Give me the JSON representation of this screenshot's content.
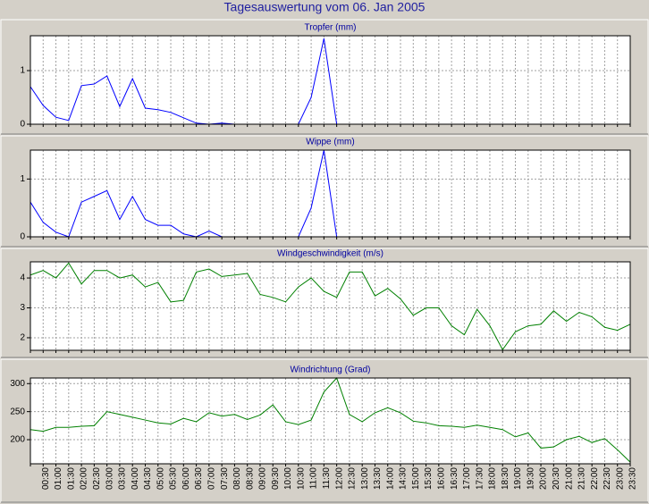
{
  "title": "Tagesauswertung vom 06. Jan 2005",
  "chart_data": [
    {
      "type": "line",
      "title": "Tropfer (mm)",
      "grid": true,
      "ylim": [
        0,
        1.65
      ],
      "yticks": [
        0,
        1
      ],
      "series": [
        {
          "name": "Tropfer (mm)",
          "color": "#0000ff",
          "values": [
            0.7,
            0.35,
            0.13,
            0.07,
            0.72,
            0.75,
            0.9,
            0.33,
            0.85,
            0.3,
            0.27,
            0.22,
            0.12,
            0.02,
            0,
            0.02,
            0,
            0,
            0,
            0,
            0,
            0,
            0.5,
            1.6,
            0,
            0,
            0,
            0,
            0,
            0,
            0,
            0,
            0,
            0,
            0,
            0,
            0,
            0,
            0,
            0,
            0,
            0,
            0,
            0,
            0,
            0,
            0,
            0
          ]
        }
      ]
    },
    {
      "type": "line",
      "title": "Wippe (mm)",
      "grid": true,
      "ylim": [
        0,
        1.5
      ],
      "yticks": [
        0,
        1
      ],
      "series": [
        {
          "name": "Wippe (mm)",
          "color": "#0000ff",
          "values": [
            0.6,
            0.25,
            0.08,
            0,
            0.6,
            0.7,
            0.8,
            0.3,
            0.7,
            0.3,
            0.2,
            0.2,
            0.05,
            0,
            0.1,
            0,
            0,
            0,
            0,
            0,
            0,
            0,
            0.5,
            1.5,
            0,
            0,
            0,
            0,
            0,
            0,
            0,
            0,
            0,
            0,
            0,
            0,
            0,
            0,
            0,
            0,
            0,
            0,
            0,
            0,
            0,
            0,
            0,
            0
          ]
        }
      ]
    },
    {
      "type": "line",
      "title": "Windgeschwindigkeit (m/s)",
      "grid": true,
      "ylim": [
        1.58,
        4.54
      ],
      "yticks": [
        2,
        3,
        4
      ],
      "series": [
        {
          "name": "Windgeschwindigkeit (m/s)",
          "color": "#008000",
          "values": [
            4.1,
            4.25,
            4.0,
            4.5,
            3.8,
            4.25,
            4.25,
            4.0,
            4.1,
            3.7,
            3.85,
            3.2,
            3.25,
            4.2,
            4.3,
            4.05,
            4.1,
            4.15,
            3.45,
            3.35,
            3.2,
            3.7,
            4.0,
            3.55,
            3.35,
            4.2,
            4.2,
            3.4,
            3.65,
            3.3,
            2.75,
            3.0,
            3.0,
            2.4,
            2.1,
            2.95,
            2.4,
            1.6,
            2.2,
            2.4,
            2.45,
            2.9,
            2.55,
            2.85,
            2.7,
            2.35,
            2.25,
            2.45
          ]
        }
      ]
    },
    {
      "type": "line",
      "title": "Windrichtung (Grad)",
      "grid": true,
      "ylim": [
        157,
        310
      ],
      "yticks": [
        200,
        250,
        300
      ],
      "categories": [
        null,
        "00:30",
        "01:00",
        "01:30",
        "02:00",
        "02:30",
        "03:00",
        "03:30",
        "04:00",
        "04:30",
        "05:00",
        "05:30",
        "06:00",
        "06:30",
        "07:00",
        "07:30",
        "08:00",
        "08:30",
        "09:00",
        "09:30",
        "10:00",
        "10:30",
        "11:00",
        "11:30",
        "12:00",
        "12:30",
        "13:00",
        "13:30",
        "14:00",
        "14:30",
        "15:00",
        "15:30",
        "16:00",
        "16:30",
        "17:00",
        "17:30",
        "18:00",
        "18:30",
        "19:00",
        "19:30",
        "20:00",
        "20:30",
        "21:00",
        "21:30",
        "22:00",
        "22:30",
        "23:00",
        "23:30"
      ],
      "series": [
        {
          "name": "Windrichtung (Grad)",
          "color": "#008000",
          "values": [
            218,
            215,
            222,
            222,
            224,
            225,
            250,
            245,
            240,
            235,
            230,
            228,
            238,
            232,
            248,
            242,
            245,
            236,
            244,
            262,
            232,
            227,
            235,
            285,
            310,
            245,
            232,
            248,
            257,
            248,
            233,
            230,
            225,
            224,
            222,
            226,
            222,
            218,
            205,
            212,
            185,
            187,
            200,
            206,
            195,
            202,
            182,
            160
          ]
        }
      ]
    }
  ]
}
